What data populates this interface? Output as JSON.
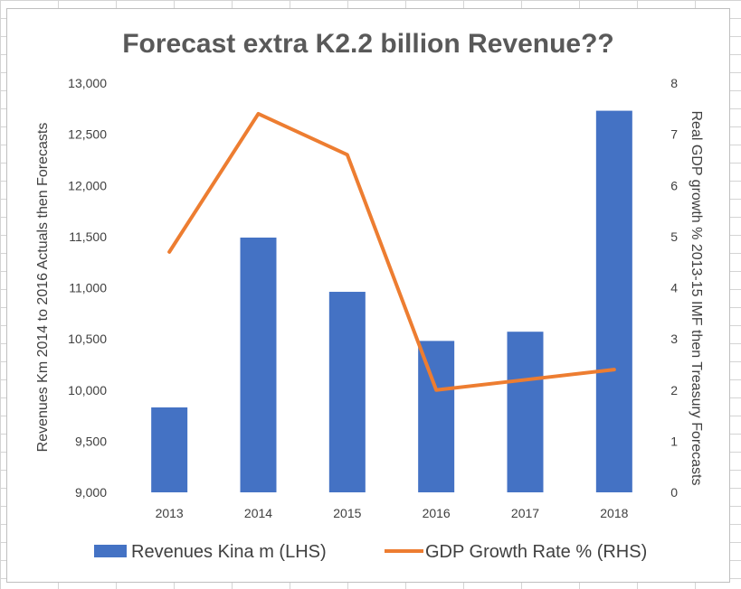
{
  "chart_data": {
    "type": "bar",
    "title": "Forecast extra K2.2 billion Revenue??",
    "categories": [
      "2013",
      "2014",
      "2015",
      "2016",
      "2017",
      "2018"
    ],
    "ylabel": "Revenues Km 2014 to 2016 Actuals then Forecasts",
    "y2label": "Real GDP growth % 2013-15 IMF then Treasury Forecasts",
    "ylim": [
      9000,
      13000
    ],
    "y2lim": [
      0,
      8
    ],
    "yticks": [
      "9,000",
      "9,500",
      "10,000",
      "10,500",
      "11,000",
      "11,500",
      "12,000",
      "12,500",
      "13,000"
    ],
    "y2ticks": [
      "0",
      "1",
      "2",
      "3",
      "4",
      "5",
      "6",
      "7",
      "8"
    ],
    "grid": false,
    "legend_position": "bottom",
    "series": [
      {
        "name": "Revenues  Kina  m  (LHS)",
        "type": "bar",
        "axis": "left",
        "color": "#4472c4",
        "values": [
          9830,
          11490,
          10960,
          10480,
          10570,
          12730
        ]
      },
      {
        "name": "GDP Growth Rate % (RHS)",
        "type": "line",
        "axis": "right",
        "color": "#ed7d31",
        "values": [
          4.7,
          7.4,
          6.6,
          2.0,
          2.2,
          2.4
        ]
      }
    ]
  }
}
